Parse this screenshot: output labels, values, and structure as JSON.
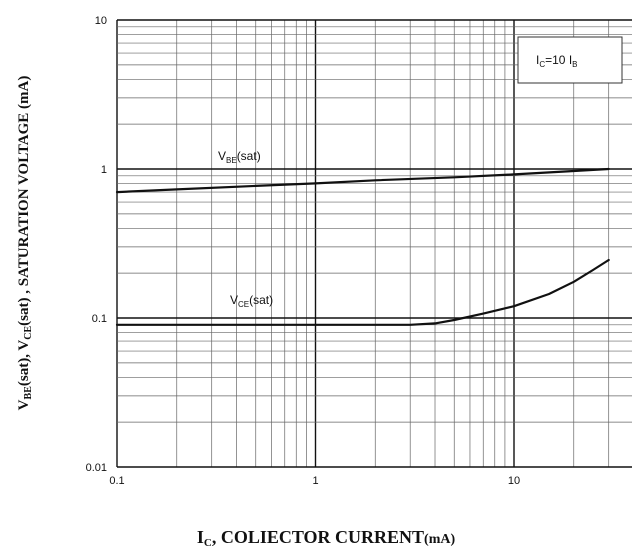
{
  "chart_data": {
    "type": "line",
    "x_scale": "log",
    "y_scale": "log",
    "xlim": [
      0.1,
      32
    ],
    "ylim": [
      0.01,
      10
    ],
    "grid": true,
    "x_ticks": [
      "0.1",
      "1",
      "10"
    ],
    "y_ticks": [
      "0.01",
      "0.1",
      "1",
      "10"
    ],
    "xlabel": {
      "main": "I",
      "sub": "C",
      "rest": ", COLIECTOR CURRENT",
      "unit": "(mA)"
    },
    "ylabel": {
      "p1": "V",
      "p1_sub": "BE",
      "p2": "(sat), V",
      "p2_sub": "CE",
      "p3": "(sat) , SATURATION VOLTAGE (mA)"
    },
    "condition": {
      "main1": "I",
      "sub1": "C",
      "main2": "=10 I",
      "sub2": "B"
    },
    "series": [
      {
        "label_main": "V",
        "label_sub": "BE",
        "label_rest": "(sat)",
        "color": "#111111",
        "x": [
          0.1,
          0.2,
          0.5,
          1,
          2,
          5,
          10,
          20,
          30
        ],
        "y": [
          0.7,
          0.73,
          0.77,
          0.8,
          0.84,
          0.88,
          0.92,
          0.97,
          1.0
        ]
      },
      {
        "label_main": "V",
        "label_sub": "CE",
        "label_rest": "(sat)",
        "color": "#111111",
        "x": [
          0.1,
          1,
          2,
          3,
          4,
          5,
          7,
          10,
          15,
          20,
          25,
          30
        ],
        "y": [
          0.09,
          0.09,
          0.09,
          0.09,
          0.092,
          0.097,
          0.107,
          0.12,
          0.145,
          0.175,
          0.21,
          0.245
        ]
      }
    ]
  }
}
